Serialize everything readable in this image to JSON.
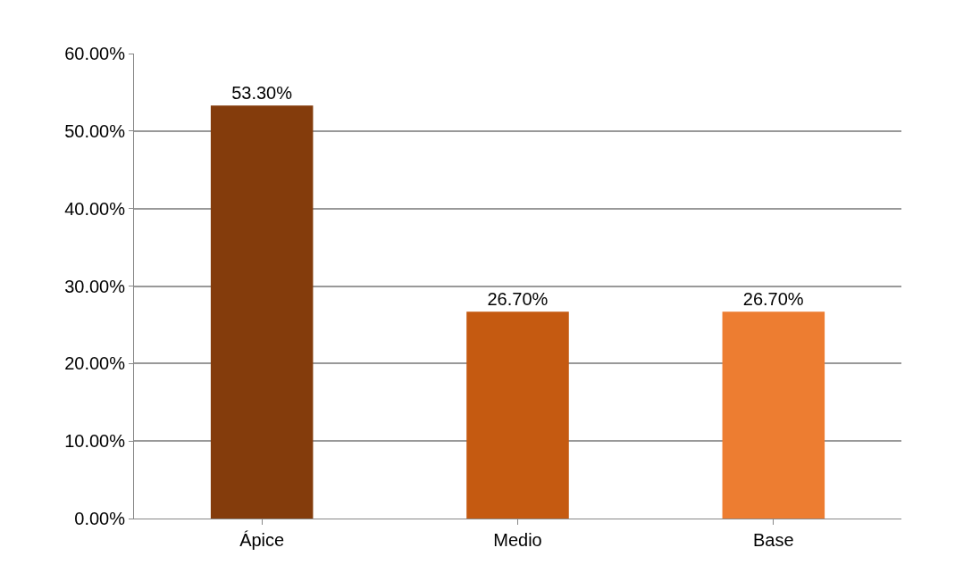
{
  "chart_data": {
    "type": "bar",
    "categories": [
      "Ápice",
      "Medio",
      "Base"
    ],
    "values": [
      53.3,
      26.7,
      26.7
    ],
    "colors": [
      "#843c0c",
      "#c55a11",
      "#ed7d31"
    ],
    "value_labels": [
      "53.30%",
      "26.70%",
      "26.70%"
    ],
    "ylim": [
      0,
      60
    ],
    "yticks": [
      {
        "value": 0,
        "label": "0.00%"
      },
      {
        "value": 10,
        "label": "10.00%"
      },
      {
        "value": 20,
        "label": "20.00%"
      },
      {
        "value": 30,
        "label": "30.00%"
      },
      {
        "value": 40,
        "label": "40.00%"
      },
      {
        "value": 50,
        "label": "50.00%"
      },
      {
        "value": 60,
        "label": "60.00%"
      }
    ],
    "grid": "y"
  }
}
